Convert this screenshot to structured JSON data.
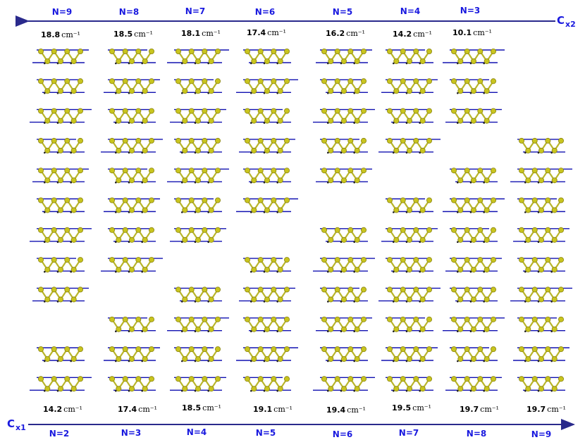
{
  "top_axis": {
    "label_main": "C",
    "label_sub": "x2",
    "n_labels": [
      "N=9",
      "N=8",
      "N=7",
      "N=6",
      "N=5",
      "N=4",
      "N=3"
    ],
    "frequencies": [
      {
        "value": "18.8",
        "unit": "cm⁻¹"
      },
      {
        "value": "18.5",
        "unit": "cm⁻¹"
      },
      {
        "value": "18.1",
        "unit": "cm⁻¹"
      },
      {
        "value": "17.4",
        "unit": "cm⁻¹"
      },
      {
        "value": "16.2",
        "unit": "cm⁻¹"
      },
      {
        "value": "14.2",
        "unit": "cm⁻¹"
      },
      {
        "value": "10.1",
        "unit": "cm⁻¹"
      }
    ]
  },
  "bottom_axis": {
    "label_main": "C",
    "label_sub": "x1",
    "n_labels": [
      "N=2",
      "N=3",
      "N=4",
      "N=5",
      "N=6",
      "N=7",
      "N=8",
      "N=9"
    ],
    "frequencies": [
      {
        "value": "14.2",
        "unit": "cm⁻¹"
      },
      {
        "value": "17.4",
        "unit": "cm⁻¹"
      },
      {
        "value": "18.5",
        "unit": "cm⁻¹"
      },
      {
        "value": "19.1",
        "unit": "cm⁻¹"
      },
      {
        "value": "19.4",
        "unit": "cm⁻¹"
      },
      {
        "value": "19.5",
        "unit": "cm⁻¹"
      },
      {
        "value": "19.7",
        "unit": "cm⁻¹"
      },
      {
        "value": "19.7",
        "unit": "cm⁻¹"
      }
    ]
  },
  "colors": {
    "axis": "#2a2a8c",
    "label": "#1a1adf",
    "atom_fill": "#c8c41e",
    "atom_edge": "#8a8410",
    "bond": "#b9b52a",
    "vector": "#1010b0"
  },
  "columns": [
    {
      "rows": [
        0,
        1,
        2,
        3,
        4,
        5,
        6,
        7,
        8,
        10,
        11
      ]
    },
    {
      "rows": [
        0,
        1,
        2,
        3,
        4,
        5,
        6,
        7,
        9,
        10,
        11
      ]
    },
    {
      "rows": [
        0,
        1,
        2,
        3,
        4,
        5,
        6,
        8,
        9,
        10,
        11
      ]
    },
    {
      "rows": [
        0,
        1,
        2,
        3,
        4,
        5,
        7,
        8,
        9,
        10,
        11
      ]
    },
    {
      "rows": [
        0,
        1,
        2,
        3,
        4,
        6,
        7,
        8,
        9,
        10,
        11
      ]
    },
    {
      "rows": [
        0,
        1,
        2,
        3,
        5,
        6,
        7,
        8,
        9,
        10,
        11
      ]
    },
    {
      "rows": [
        0,
        1,
        2,
        4,
        5,
        6,
        7,
        8,
        9,
        10,
        11
      ]
    },
    {
      "rows": [
        3,
        4,
        5,
        6,
        7,
        8,
        9,
        10,
        11
      ]
    }
  ]
}
